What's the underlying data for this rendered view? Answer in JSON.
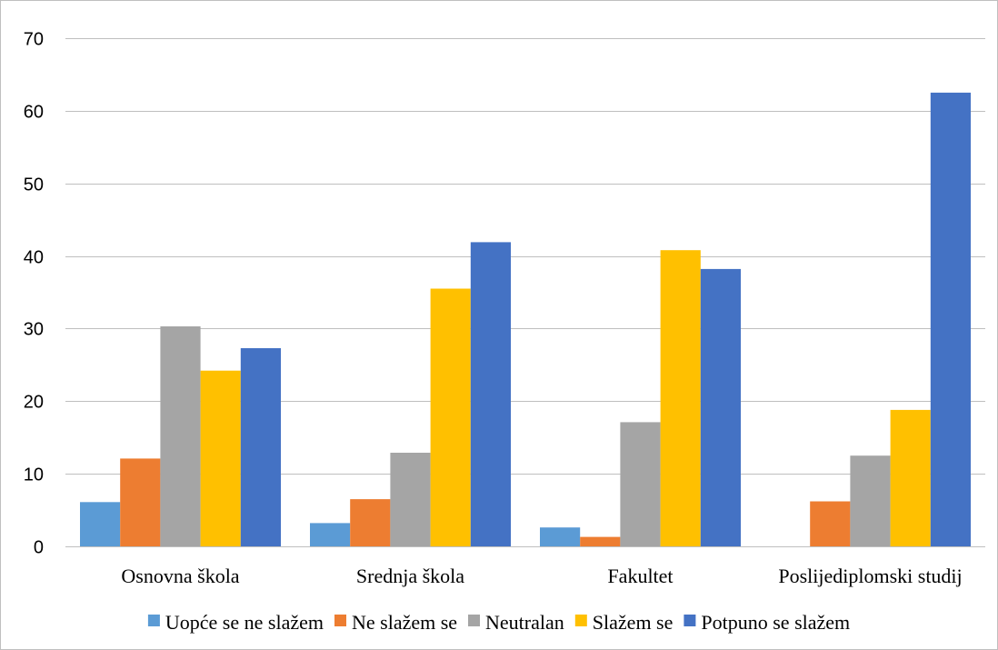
{
  "chart_data": {
    "type": "bar",
    "title": "",
    "xlabel": "",
    "ylabel": "",
    "categories": [
      "Osnovna škola",
      "Srednja škola",
      "Fakultet",
      "Poslijediplomski studij"
    ],
    "series": [
      {
        "name": "Uopće se ne slažem",
        "color": "#5b9bd5",
        "values": [
          6.1,
          3.2,
          2.6,
          0
        ]
      },
      {
        "name": "Ne slažem se",
        "color": "#ed7d31",
        "values": [
          12.1,
          6.5,
          1.3,
          6.2
        ]
      },
      {
        "name": "Neutralan",
        "color": "#a5a5a5",
        "values": [
          30.3,
          12.9,
          17.1,
          12.5
        ]
      },
      {
        "name": "Slažem se",
        "color": "#ffc000",
        "values": [
          24.2,
          35.5,
          40.8,
          18.8
        ]
      },
      {
        "name": "Potpuno se slažem",
        "color": "#4472c4",
        "values": [
          27.3,
          41.9,
          38.2,
          62.5
        ]
      }
    ],
    "ylim": [
      0,
      70
    ],
    "yticks": [
      0,
      10,
      20,
      30,
      40,
      50,
      60,
      70
    ],
    "grid": true,
    "legend_position": "bottom"
  }
}
